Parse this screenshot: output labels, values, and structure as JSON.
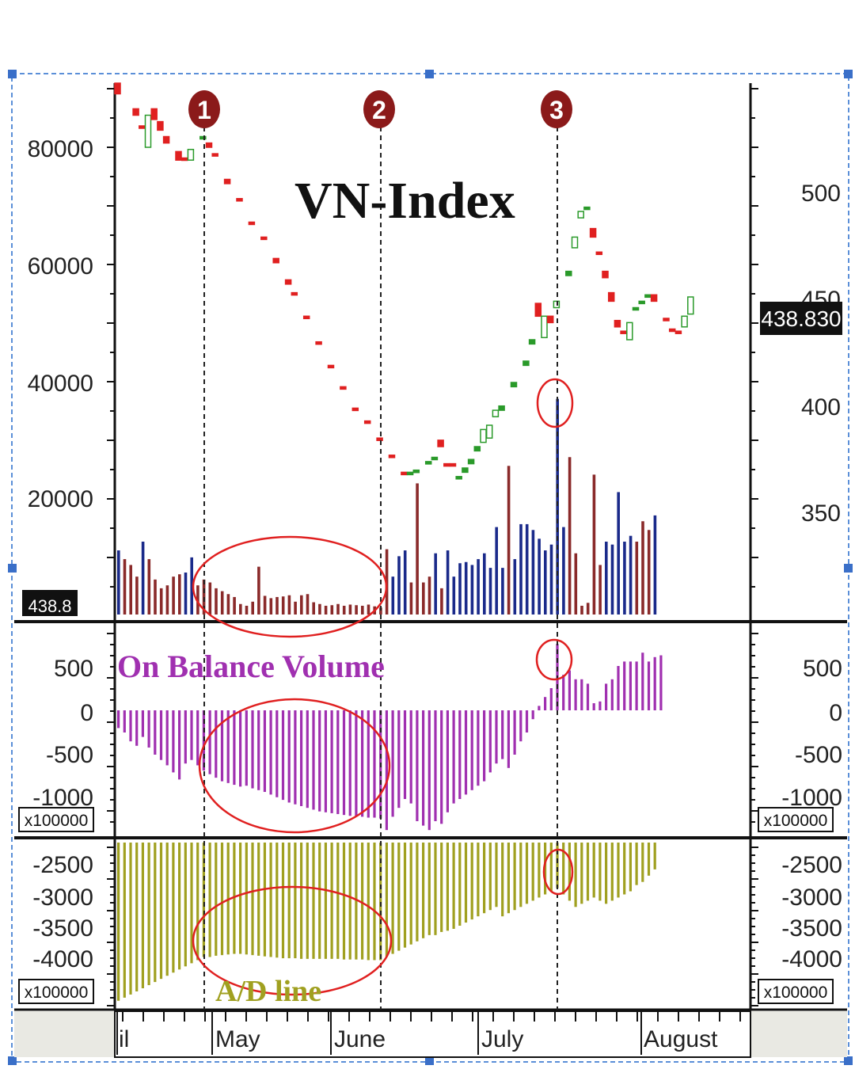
{
  "chart_data": [
    {
      "type": "candlestick",
      "title": "VN-Index",
      "left_axis_ticks": [
        "80000",
        "60000",
        "40000",
        "20000"
      ],
      "right_axis_ticks": [
        "500",
        "450",
        "400",
        "350"
      ],
      "last_value_tag": "438.830",
      "volume_tag": "438.8",
      "markers": [
        "1",
        "2",
        "3"
      ],
      "price_series": {
        "name": "VN-Index",
        "up_color": "#2a9a2a",
        "down_color": "#e02020",
        "points": [
          {
            "bar": 0,
            "open": 550,
            "close": 545,
            "dir": "down"
          },
          {
            "bar": 3,
            "open": 535,
            "close": 538,
            "dir": "down"
          },
          {
            "bar": 4,
            "open": 530,
            "close": 530,
            "dir": "down"
          },
          {
            "bar": 5,
            "open": 520,
            "close": 535,
            "dir": "up"
          },
          {
            "bar": 6,
            "open": 538,
            "close": 533,
            "dir": "down"
          },
          {
            "bar": 7,
            "open": 532,
            "close": 528,
            "dir": "down"
          },
          {
            "bar": 8,
            "open": 525,
            "close": 522,
            "dir": "down"
          },
          {
            "bar": 10,
            "open": 518,
            "close": 514,
            "dir": "down"
          },
          {
            "bar": 11,
            "open": 514,
            "close": 515,
            "dir": "down"
          },
          {
            "bar": 12,
            "open": 514,
            "close": 519,
            "dir": "up"
          },
          {
            "bar": 14,
            "open": 524,
            "close": 525,
            "dir": "up"
          },
          {
            "bar": 15,
            "open": 522,
            "close": 520,
            "dir": "down"
          },
          {
            "bar": 16,
            "open": 517,
            "close": 516,
            "dir": "down"
          },
          {
            "bar": 18,
            "open": 505,
            "close": 503,
            "dir": "down"
          },
          {
            "bar": 20,
            "open": 496,
            "close": 495,
            "dir": "down"
          },
          {
            "bar": 22,
            "open": 485,
            "close": 484,
            "dir": "down"
          },
          {
            "bar": 24,
            "open": 478,
            "close": 477,
            "dir": "down"
          },
          {
            "bar": 26,
            "open": 468,
            "close": 466,
            "dir": "down"
          },
          {
            "bar": 28,
            "open": 458,
            "close": 456,
            "dir": "down"
          },
          {
            "bar": 29,
            "open": 452,
            "close": 451,
            "dir": "down"
          },
          {
            "bar": 31,
            "open": 441,
            "close": 440,
            "dir": "down"
          },
          {
            "bar": 33,
            "open": 429,
            "close": 428,
            "dir": "down"
          },
          {
            "bar": 35,
            "open": 418,
            "close": 417,
            "dir": "down"
          },
          {
            "bar": 37,
            "open": 408,
            "close": 407,
            "dir": "down"
          },
          {
            "bar": 39,
            "open": 398,
            "close": 397,
            "dir": "down"
          },
          {
            "bar": 41,
            "open": 392,
            "close": 391,
            "dir": "down"
          },
          {
            "bar": 43,
            "open": 384,
            "close": 383,
            "dir": "down"
          },
          {
            "bar": 45,
            "open": 376,
            "close": 375,
            "dir": "down"
          },
          {
            "bar": 47,
            "open": 368,
            "close": 367,
            "dir": "down"
          },
          {
            "bar": 48,
            "open": 367,
            "close": 368,
            "dir": "up"
          },
          {
            "bar": 49,
            "open": 368,
            "close": 369,
            "dir": "up"
          },
          {
            "bar": 51,
            "open": 372,
            "close": 373,
            "dir": "up"
          },
          {
            "bar": 52,
            "open": 374,
            "close": 375,
            "dir": "up"
          },
          {
            "bar": 53,
            "open": 383,
            "close": 380,
            "dir": "down"
          },
          {
            "bar": 54,
            "open": 372,
            "close": 371,
            "dir": "down"
          },
          {
            "bar": 55,
            "open": 372,
            "close": 371,
            "dir": "down"
          },
          {
            "bar": 56,
            "open": 365,
            "close": 366,
            "dir": "up"
          },
          {
            "bar": 57,
            "open": 368,
            "close": 370,
            "dir": "up"
          },
          {
            "bar": 58,
            "open": 372,
            "close": 374,
            "dir": "up"
          },
          {
            "bar": 59,
            "open": 378,
            "close": 380,
            "dir": "up"
          },
          {
            "bar": 60,
            "open": 382,
            "close": 388,
            "dir": "up"
          },
          {
            "bar": 61,
            "open": 384,
            "close": 390,
            "dir": "up"
          },
          {
            "bar": 62,
            "open": 394,
            "close": 397,
            "dir": "up"
          },
          {
            "bar": 63,
            "open": 397,
            "close": 399,
            "dir": "up"
          },
          {
            "bar": 65,
            "open": 408,
            "close": 410,
            "dir": "up"
          },
          {
            "bar": 67,
            "open": 418,
            "close": 420,
            "dir": "up"
          },
          {
            "bar": 68,
            "open": 428,
            "close": 430,
            "dir": "up"
          },
          {
            "bar": 69,
            "open": 447,
            "close": 441,
            "dir": "down"
          },
          {
            "bar": 70,
            "open": 431,
            "close": 441,
            "dir": "up"
          },
          {
            "bar": 71,
            "open": 441,
            "close": 438,
            "dir": "down"
          },
          {
            "bar": 72,
            "open": 445,
            "close": 448,
            "dir": "up"
          },
          {
            "bar": 74,
            "open": 460,
            "close": 462,
            "dir": "up"
          },
          {
            "bar": 75,
            "open": 473,
            "close": 478,
            "dir": "up"
          },
          {
            "bar": 76,
            "open": 487,
            "close": 490,
            "dir": "up"
          },
          {
            "bar": 77,
            "open": 491,
            "close": 492,
            "dir": "up"
          },
          {
            "bar": 78,
            "open": 482,
            "close": 478,
            "dir": "down"
          },
          {
            "bar": 79,
            "open": 471,
            "close": 470,
            "dir": "down"
          },
          {
            "bar": 80,
            "open": 462,
            "close": 459,
            "dir": "down"
          },
          {
            "bar": 81,
            "open": 452,
            "close": 448,
            "dir": "down"
          },
          {
            "bar": 82,
            "open": 439,
            "close": 436,
            "dir": "down"
          },
          {
            "bar": 83,
            "open": 434,
            "close": 433,
            "dir": "down"
          },
          {
            "bar": 84,
            "open": 430,
            "close": 438,
            "dir": "up"
          },
          {
            "bar": 85,
            "open": 444,
            "close": 445,
            "dir": "up"
          },
          {
            "bar": 86,
            "open": 447,
            "close": 448,
            "dir": "up"
          },
          {
            "bar": 87,
            "open": 450,
            "close": 451,
            "dir": "up"
          },
          {
            "bar": 88,
            "open": 451,
            "close": 448,
            "dir": "down"
          },
          {
            "bar": 90,
            "open": 440,
            "close": 439,
            "dir": "down"
          },
          {
            "bar": 91,
            "open": 435,
            "close": 434,
            "dir": "down"
          },
          {
            "bar": 92,
            "open": 434,
            "close": 433,
            "dir": "down"
          },
          {
            "bar": 93,
            "open": 436,
            "close": 441,
            "dir": "up"
          },
          {
            "bar": 94,
            "open": 442,
            "close": 450,
            "dir": "up"
          }
        ]
      },
      "volume_series": {
        "name": "Volume",
        "up_color": "#1a2a8a",
        "down_color": "#8a2a2a",
        "values": [
          11000,
          9500,
          8500,
          6500,
          12500,
          9500,
          6000,
          4500,
          5000,
          6500,
          6900,
          7200,
          9800,
          5000,
          6000,
          5500,
          4500,
          4000,
          3500,
          3000,
          1800,
          1500,
          2200,
          8200,
          3200,
          2800,
          3000,
          3100,
          3300,
          2200,
          3300,
          3500,
          2100,
          1800,
          1500,
          1600,
          1800,
          1500,
          1700,
          1600,
          1500,
          1700,
          1400,
          1200,
          11200,
          6500,
          10000,
          11000,
          5500,
          22500,
          5500,
          6500,
          10500,
          4500,
          11000,
          6500,
          8800,
          9000,
          8500,
          9500,
          10500,
          8000,
          15000,
          8000,
          25500,
          9500,
          15500,
          15500,
          14500,
          13000,
          11000,
          12000,
          37000,
          15000,
          27000,
          10500,
          1500,
          2000,
          24000,
          8500,
          12500,
          12000,
          21000,
          12500,
          13500,
          12500,
          16000,
          14500,
          17000
        ],
        "directions": [
          "up",
          "down",
          "down",
          "down",
          "up",
          "down",
          "down",
          "down",
          "down",
          "down",
          "down",
          "up",
          "up",
          "down",
          "down",
          "down",
          "down",
          "down",
          "down",
          "down",
          "down",
          "down",
          "down",
          "down",
          "down",
          "down",
          "down",
          "down",
          "down",
          "down",
          "down",
          "down",
          "down",
          "down",
          "down",
          "down",
          "down",
          "down",
          "down",
          "down",
          "down",
          "down",
          "down",
          "down",
          "down",
          "up",
          "up",
          "up",
          "down",
          "down",
          "down",
          "down",
          "up",
          "down",
          "up",
          "up",
          "up",
          "up",
          "up",
          "up",
          "up",
          "up",
          "up",
          "up",
          "down",
          "up",
          "up",
          "up",
          "up",
          "up",
          "up",
          "up",
          "up",
          "up",
          "down",
          "down",
          "down",
          "down",
          "down",
          "down",
          "up",
          "up",
          "up",
          "up",
          "up",
          "down",
          "down",
          "down",
          "up",
          "up"
        ]
      }
    },
    {
      "type": "bar",
      "title": "On Balance Volume",
      "unit_tag": "x100000",
      "ticks": [
        "500",
        "0",
        "-500",
        "-1000"
      ],
      "color": "#a030b0",
      "values": [
        -200,
        -250,
        -350,
        -400,
        -300,
        -420,
        -500,
        -560,
        -620,
        -700,
        -780,
        -600,
        -560,
        -620,
        -680,
        -720,
        -760,
        -800,
        -820,
        -840,
        -860,
        -850,
        -880,
        -900,
        -920,
        -950,
        -980,
        -1010,
        -1040,
        -1060,
        -1080,
        -1100,
        -1120,
        -1140,
        -1150,
        -1160,
        -1170,
        -1180,
        -1190,
        -1200,
        -1200,
        -1210,
        -1210,
        -1220,
        -1350,
        -1200,
        -1100,
        -1000,
        -1050,
        -1250,
        -1300,
        -1350,
        -1250,
        -1280,
        -1150,
        -1050,
        -1000,
        -950,
        -900,
        -850,
        -800,
        -700,
        -600,
        -550,
        -650,
        -500,
        -350,
        -250,
        -100,
        50,
        150,
        250,
        750,
        400,
        450,
        350,
        350,
        300,
        80,
        100,
        300,
        350,
        500,
        550,
        550,
        550,
        650,
        550,
        600,
        620
      ]
    },
    {
      "type": "bar",
      "title": "A/D line",
      "unit_tag": "x100000",
      "ticks": [
        "-2500",
        "-3000",
        "-3500",
        "-4000"
      ],
      "color": "#a0a020",
      "values": [
        -4700,
        -4650,
        -4600,
        -4550,
        -4500,
        -4450,
        -4400,
        -4350,
        -4300,
        -4250,
        -4200,
        -4150,
        -4100,
        -4050,
        -4000,
        -4000,
        -3980,
        -3970,
        -3960,
        -3950,
        -3950,
        -3960,
        -3970,
        -3980,
        -3990,
        -4000,
        -4010,
        -4020,
        -4020,
        -4020,
        -4030,
        -4030,
        -4030,
        -4030,
        -4030,
        -4030,
        -4030,
        -4040,
        -4040,
        -4040,
        -4040,
        -4050,
        -4050,
        -4050,
        -4000,
        -3950,
        -3900,
        -3850,
        -3800,
        -3750,
        -3700,
        -3650,
        -3650,
        -3600,
        -3580,
        -3550,
        -3500,
        -3450,
        -3400,
        -3350,
        -3300,
        -3250,
        -3200,
        -3350,
        -3300,
        -3250,
        -3200,
        -3150,
        -3100,
        -3050,
        -3000,
        -2950,
        -2900,
        -3000,
        -3100,
        -3200,
        -3150,
        -3100,
        -3050,
        -3100,
        -3150,
        -3100,
        -3050,
        -3000,
        -2950,
        -2850,
        -2800,
        -2700,
        -2600
      ]
    }
  ],
  "x_axis": {
    "labels": [
      "il",
      "May",
      "June",
      "July",
      "August"
    ]
  },
  "colors": {
    "annotation": "#e02020",
    "marker_fill": "#8b1a1a",
    "frame": "#5b8fd8",
    "background": "#ffffff"
  }
}
